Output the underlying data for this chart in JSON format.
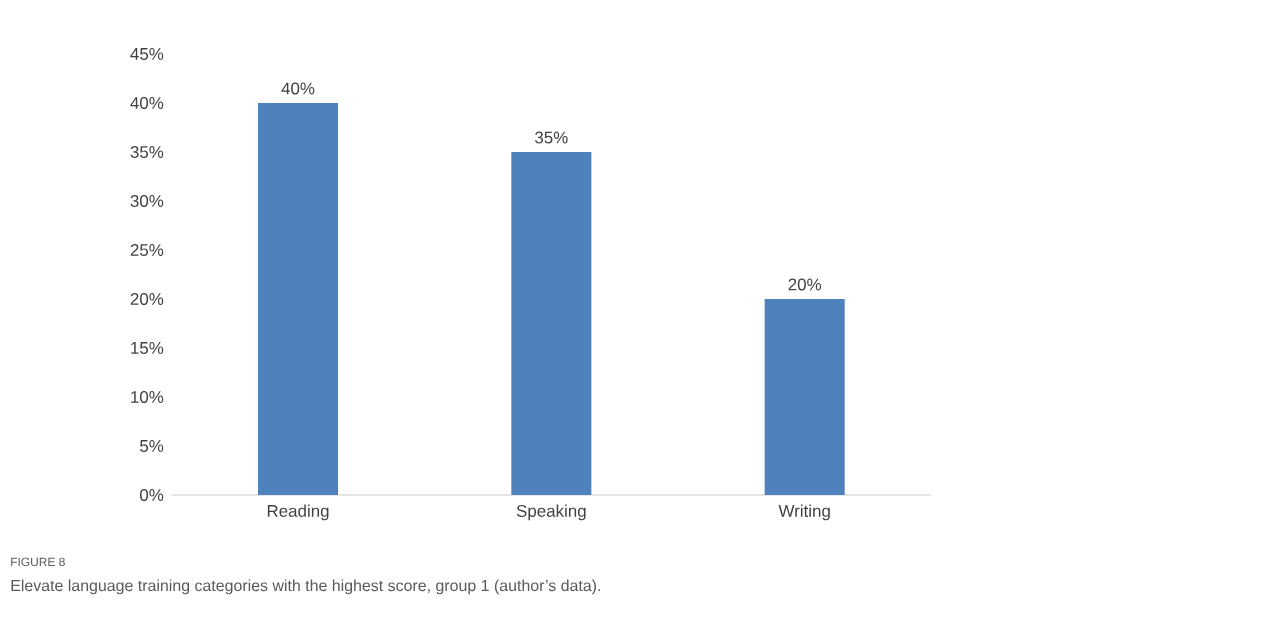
{
  "chart_data": {
    "type": "bar",
    "categories": [
      "Reading",
      "Speaking",
      "Writing"
    ],
    "values": [
      40,
      35,
      20
    ],
    "value_labels": [
      "40%",
      "35%",
      "20%"
    ],
    "color": "#4f81bd",
    "ylim": [
      0,
      45
    ],
    "yticks": [
      {
        "value": 0,
        "label": "0%"
      },
      {
        "value": 5,
        "label": "5%"
      },
      {
        "value": 10,
        "label": "10%"
      },
      {
        "value": 15,
        "label": "15%"
      },
      {
        "value": 20,
        "label": "20%"
      },
      {
        "value": 25,
        "label": "25%"
      },
      {
        "value": 30,
        "label": "30%"
      },
      {
        "value": 35,
        "label": "35%"
      },
      {
        "value": 40,
        "label": "40%"
      },
      {
        "value": 45,
        "label": "45%"
      }
    ],
    "annotations": [
      "FIGURE 8",
      "Elevate language training categories with the highest score, group 1 (author’s data)."
    ]
  }
}
